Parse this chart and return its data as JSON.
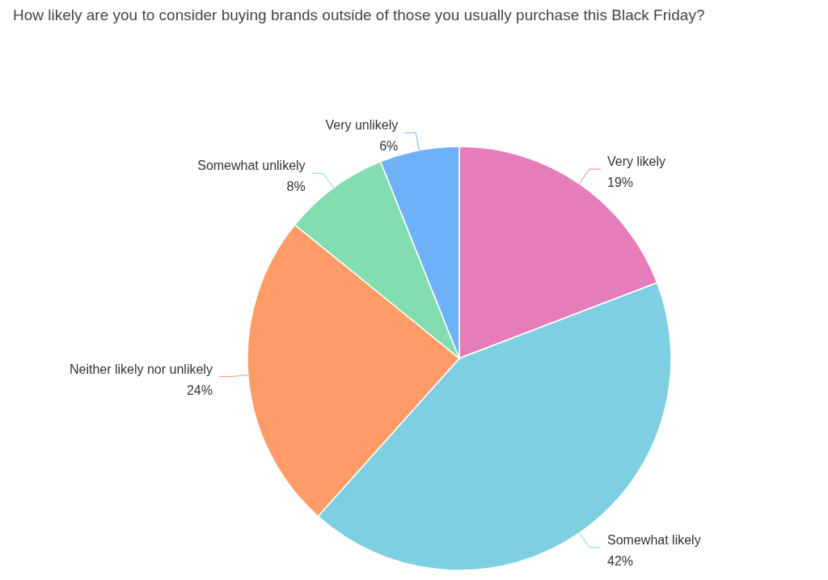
{
  "chart_data": {
    "type": "pie",
    "title": "How likely are you to consider buying brands outside of those you usually purchase this Black Friday?",
    "categories": [
      "Very likely",
      "Somewhat likely",
      "Neither likely nor unlikely",
      "Somewhat unlikely",
      "Very unlikely"
    ],
    "values": [
      19,
      42,
      24,
      8,
      6
    ],
    "value_labels": [
      "19%",
      "42%",
      "24%",
      "8%",
      "6%"
    ],
    "colors": [
      "#e57dbb",
      "#7fcfe3",
      "#ff9b66",
      "#82deae",
      "#6fb1f9"
    ]
  }
}
